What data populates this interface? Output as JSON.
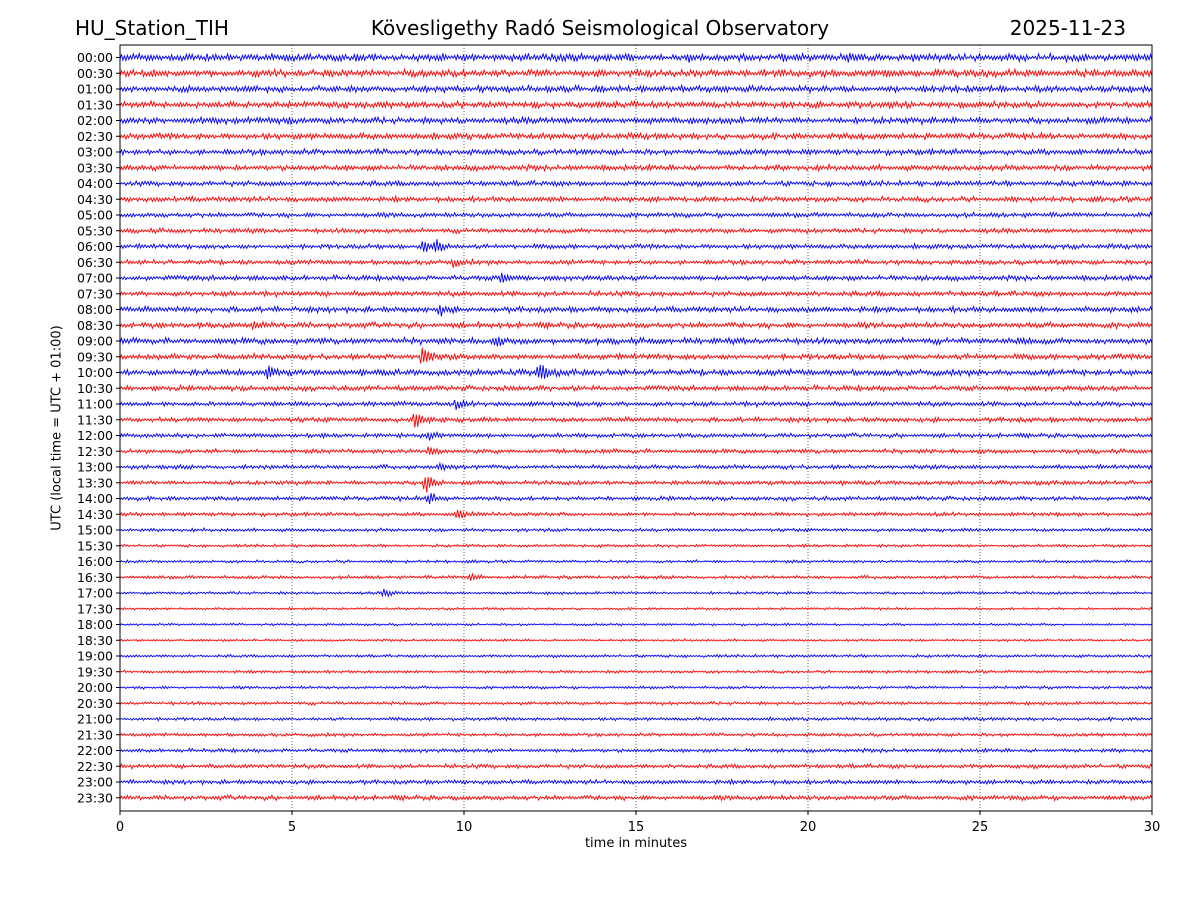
{
  "header": {
    "station": "HU_Station_TIH",
    "observatory": "Kövesligethy Radó Seismological Observatory",
    "date": "2025-11-23"
  },
  "colors": {
    "even_trace": "#0000ff",
    "odd_trace": "#ff0000",
    "grid": "#000000"
  },
  "chart_data": {
    "type": "line",
    "title": "Kövesligethy Radó Seismological Observatory",
    "xlabel": "time in minutes",
    "ylabel": "UTC (local time = UTC + 01:00)",
    "xlim": [
      0,
      30
    ],
    "x_ticks": [
      0,
      5,
      10,
      15,
      20,
      25,
      30
    ],
    "x_tick_labels": [
      "0",
      "5",
      "10",
      "15",
      "20",
      "25",
      "30"
    ],
    "grid": "vertical dotted",
    "row_labels": [
      "00:00",
      "00:30",
      "01:00",
      "01:30",
      "02:00",
      "02:30",
      "03:00",
      "03:30",
      "04:00",
      "04:30",
      "05:00",
      "05:30",
      "06:00",
      "06:30",
      "07:00",
      "07:30",
      "08:00",
      "08:30",
      "09:00",
      "09:30",
      "10:00",
      "10:30",
      "11:00",
      "11:30",
      "12:00",
      "12:30",
      "13:00",
      "13:30",
      "14:00",
      "14:30",
      "15:00",
      "15:30",
      "16:00",
      "16:30",
      "17:00",
      "17:30",
      "18:00",
      "18:30",
      "19:00",
      "19:30",
      "20:00",
      "20:30",
      "21:00",
      "21:30",
      "22:00",
      "22:30",
      "23:00",
      "23:30"
    ],
    "noise_level": [
      0.8,
      0.75,
      0.7,
      0.7,
      0.7,
      0.65,
      0.6,
      0.6,
      0.55,
      0.55,
      0.5,
      0.5,
      0.5,
      0.5,
      0.55,
      0.55,
      0.6,
      0.6,
      0.65,
      0.6,
      0.65,
      0.55,
      0.5,
      0.5,
      0.45,
      0.45,
      0.45,
      0.45,
      0.45,
      0.4,
      0.35,
      0.3,
      0.3,
      0.35,
      0.3,
      0.25,
      0.25,
      0.25,
      0.3,
      0.3,
      0.3,
      0.35,
      0.35,
      0.35,
      0.4,
      0.45,
      0.45,
      0.5
    ],
    "events": [
      {
        "row": "00:00",
        "x": 16.6,
        "amp": 1.2
      },
      {
        "row": "00:00",
        "x": 21.2,
        "amp": 1.1
      },
      {
        "row": "06:00",
        "x": 8.8,
        "amp": 2.2
      },
      {
        "row": "06:00",
        "x": 9.2,
        "amp": 3.0
      },
      {
        "row": "06:30",
        "x": 9.7,
        "amp": 1.2
      },
      {
        "row": "07:00",
        "x": 11.1,
        "amp": 1.8
      },
      {
        "row": "08:00",
        "x": 9.3,
        "amp": 1.8
      },
      {
        "row": "08:30",
        "x": 3.9,
        "amp": 1.2
      },
      {
        "row": "09:00",
        "x": 10.9,
        "amp": 1.4
      },
      {
        "row": "09:00",
        "x": 26.2,
        "amp": 1.0
      },
      {
        "row": "09:30",
        "x": 8.8,
        "amp": 3.2
      },
      {
        "row": "10:00",
        "x": 4.3,
        "amp": 2.2
      },
      {
        "row": "10:00",
        "x": 12.2,
        "amp": 4.0
      },
      {
        "row": "11:00",
        "x": 9.8,
        "amp": 1.5
      },
      {
        "row": "11:30",
        "x": 8.6,
        "amp": 3.5
      },
      {
        "row": "12:00",
        "x": 9.0,
        "amp": 1.5
      },
      {
        "row": "12:30",
        "x": 9.0,
        "amp": 1.8
      },
      {
        "row": "13:00",
        "x": 9.3,
        "amp": 1.4
      },
      {
        "row": "13:30",
        "x": 8.9,
        "amp": 4.0
      },
      {
        "row": "14:00",
        "x": 9.0,
        "amp": 2.6
      },
      {
        "row": "14:30",
        "x": 9.85,
        "amp": 2.4
      },
      {
        "row": "16:30",
        "x": 10.2,
        "amp": 1.5
      },
      {
        "row": "17:00",
        "x": 7.7,
        "amp": 1.5
      }
    ]
  }
}
